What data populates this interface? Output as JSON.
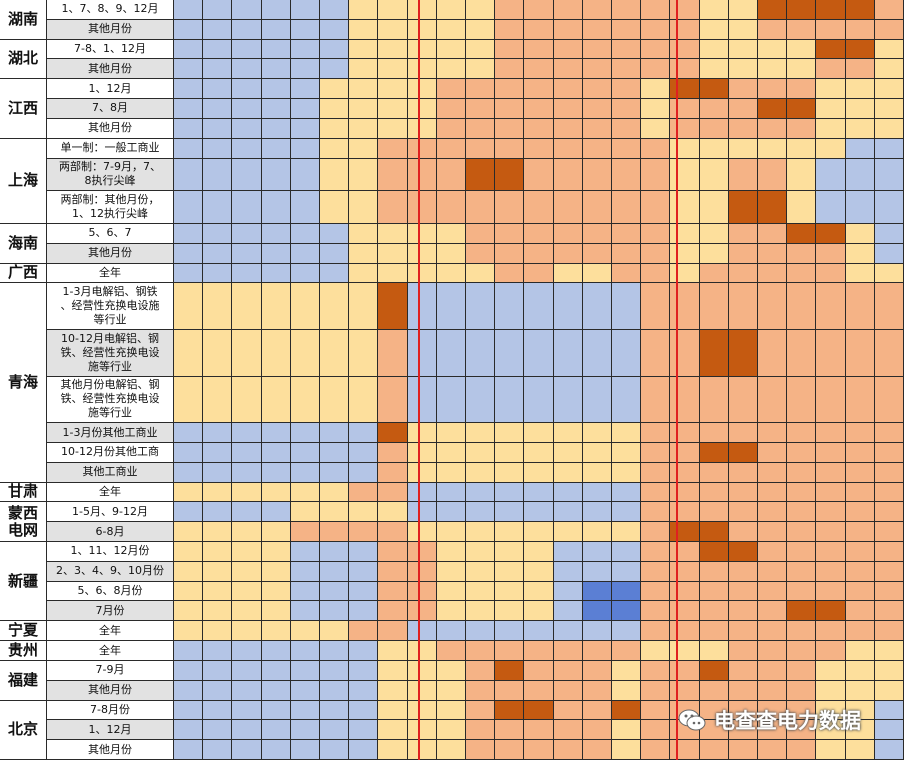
{
  "colors": {
    "B": "#b4c5e6",
    "D": "#5b7fd4",
    "Y": "#fddf9c",
    "O": "#f5b386",
    "R": "#c55a11",
    "label_gray": "#e2e2e2",
    "label_white": "#ffffff",
    "divider": "#e02020"
  },
  "provinces": [
    {
      "name": "湖南",
      "rows": [
        {
          "label": "1、7、8、9、12月",
          "pattern": [
            [
              "B",
              6
            ],
            [
              "Y",
              5
            ],
            [
              "O",
              7
            ],
            [
              "Y",
              2
            ],
            [
              "R",
              4
            ],
            [
              "O",
              1
            ],
            [
              "B",
              1
            ]
          ]
        },
        {
          "label": "其他月份",
          "pattern": [
            [
              "B",
              6
            ],
            [
              "Y",
              5
            ],
            [
              "O",
              7
            ],
            [
              "Y",
              2
            ],
            [
              "O",
              5
            ],
            [
              "B",
              1
            ]
          ]
        }
      ]
    },
    {
      "name": "湖北",
      "rows": [
        {
          "label": "7-8、1、12月",
          "pattern": [
            [
              "B",
              6
            ],
            [
              "Y",
              5
            ],
            [
              "O",
              7
            ],
            [
              "Y",
              4
            ],
            [
              "R",
              2
            ],
            [
              "Y",
              1
            ],
            [
              "B",
              1
            ]
          ]
        },
        {
          "label": "其他月份",
          "pattern": [
            [
              "B",
              6
            ],
            [
              "Y",
              5
            ],
            [
              "O",
              7
            ],
            [
              "Y",
              4
            ],
            [
              "O",
              2
            ],
            [
              "Y",
              1
            ],
            [
              "B",
              1
            ]
          ]
        }
      ]
    },
    {
      "name": "江西",
      "rows": [
        {
          "label": "1、12月",
          "pattern": [
            [
              "B",
              5
            ],
            [
              "Y",
              4
            ],
            [
              "O",
              7
            ],
            [
              "Y",
              1
            ],
            [
              "R",
              2
            ],
            [
              "O",
              3
            ],
            [
              "Y",
              4
            ]
          ]
        },
        {
          "label": "7、8月",
          "pattern": [
            [
              "B",
              5
            ],
            [
              "Y",
              4
            ],
            [
              "O",
              7
            ],
            [
              "Y",
              1
            ],
            [
              "O",
              3
            ],
            [
              "R",
              2
            ],
            [
              "Y",
              4
            ]
          ]
        },
        {
          "label": "其他月份",
          "pattern": [
            [
              "B",
              5
            ],
            [
              "Y",
              4
            ],
            [
              "O",
              7
            ],
            [
              "Y",
              1
            ],
            [
              "O",
              5
            ],
            [
              "Y",
              4
            ]
          ]
        }
      ]
    },
    {
      "name": "上海",
      "rows": [
        {
          "label": "单一制：一般工商业",
          "pattern": [
            [
              "B",
              5
            ],
            [
              "Y",
              2
            ],
            [
              "O",
              10
            ],
            [
              "Y",
              6
            ],
            [
              "B",
              3
            ]
          ]
        },
        {
          "label": "两部制：7-9月，7、\n8执行尖峰",
          "pattern": [
            [
              "B",
              5
            ],
            [
              "Y",
              2
            ],
            [
              "O",
              3
            ],
            [
              "R",
              2
            ],
            [
              "O",
              5
            ],
            [
              "Y",
              2
            ],
            [
              "O",
              2
            ],
            [
              "Y",
              1
            ],
            [
              "B",
              3
            ]
          ]
        },
        {
          "label": "两部制：其他月份，\n1、12执行尖峰",
          "pattern": [
            [
              "B",
              5
            ],
            [
              "Y",
              2
            ],
            [
              "O",
              10
            ],
            [
              "Y",
              2
            ],
            [
              "R",
              2
            ],
            [
              "Y",
              1
            ],
            [
              "B",
              3
            ]
          ]
        }
      ]
    },
    {
      "name": "海南",
      "rows": [
        {
          "label": "5、6、7",
          "pattern": [
            [
              "B",
              6
            ],
            [
              "Y",
              4
            ],
            [
              "O",
              7
            ],
            [
              "Y",
              2
            ],
            [
              "O",
              2
            ],
            [
              "R",
              2
            ],
            [
              "Y",
              1
            ],
            [
              "B",
              1
            ]
          ]
        },
        {
          "label": "其他月份",
          "pattern": [
            [
              "B",
              6
            ],
            [
              "Y",
              4
            ],
            [
              "O",
              7
            ],
            [
              "Y",
              2
            ],
            [
              "O",
              4
            ],
            [
              "Y",
              1
            ],
            [
              "B",
              1
            ]
          ]
        }
      ]
    },
    {
      "name": "广西",
      "rows": [
        {
          "label": "全年",
          "pattern": [
            [
              "B",
              6
            ],
            [
              "Y",
              5
            ],
            [
              "O",
              2
            ],
            [
              "Y",
              2
            ],
            [
              "O",
              2
            ],
            [
              "Y",
              1
            ],
            [
              "O",
              5
            ],
            [
              "Y",
              2
            ],
            [
              "B",
              1
            ]
          ]
        }
      ]
    },
    {
      "name": "青海",
      "rows": [
        {
          "label": "1-3月电解铝、钢铁\n、经营性充换电设施\n等行业",
          "pattern": [
            [
              "Y",
              7
            ],
            [
              "R",
              1
            ],
            [
              "B",
              8
            ],
            [
              "O",
              9
            ]
          ]
        },
        {
          "label": "10-12月电解铝、钢\n铁、经营性充换电设\n施等行业",
          "pattern": [
            [
              "Y",
              7
            ],
            [
              "O",
              1
            ],
            [
              "B",
              8
            ],
            [
              "O",
              2
            ],
            [
              "R",
              2
            ],
            [
              "O",
              5
            ]
          ]
        },
        {
          "label": "其他月份电解铝、钢\n铁、经营性充换电设\n施等行业",
          "pattern": [
            [
              "Y",
              7
            ],
            [
              "O",
              1
            ],
            [
              "B",
              8
            ],
            [
              "O",
              9
            ]
          ]
        },
        {
          "label": "1-3月份其他工商业",
          "pattern": [
            [
              "B",
              7
            ],
            [
              "R",
              1
            ],
            [
              "Y",
              8
            ],
            [
              "O",
              9
            ]
          ]
        },
        {
          "label": "10-12月份其他工商",
          "pattern": [
            [
              "B",
              7
            ],
            [
              "O",
              1
            ],
            [
              "Y",
              8
            ],
            [
              "O",
              2
            ],
            [
              "R",
              2
            ],
            [
              "O",
              5
            ]
          ]
        },
        {
          "label": "其他工商业",
          "pattern": [
            [
              "B",
              7
            ],
            [
              "O",
              1
            ],
            [
              "Y",
              8
            ],
            [
              "O",
              9
            ]
          ]
        }
      ]
    },
    {
      "name": "甘肃",
      "rows": [
        {
          "label": "全年",
          "pattern": [
            [
              "Y",
              6
            ],
            [
              "O",
              2
            ],
            [
              "B",
              8
            ],
            [
              "O",
              9
            ]
          ]
        }
      ]
    },
    {
      "name": "蒙西\n电网",
      "rows": [
        {
          "label": "1-5月、9-12月",
          "pattern": [
            [
              "B",
              4
            ],
            [
              "Y",
              4
            ],
            [
              "B",
              8
            ],
            [
              "O",
              9
            ]
          ]
        },
        {
          "label": "6-8月",
          "pattern": [
            [
              "Y",
              4
            ],
            [
              "O",
              4
            ],
            [
              "Y",
              8
            ],
            [
              "O",
              1
            ],
            [
              "R",
              2
            ],
            [
              "O",
              6
            ]
          ]
        }
      ]
    },
    {
      "name": "新疆",
      "rows": [
        {
          "label": "1、11、12月份",
          "pattern": [
            [
              "Y",
              4
            ],
            [
              "B",
              3
            ],
            [
              "O",
              2
            ],
            [
              "Y",
              4
            ],
            [
              "B",
              3
            ],
            [
              "O",
              2
            ],
            [
              "R",
              2
            ],
            [
              "O",
              5
            ]
          ]
        },
        {
          "label": "2、3、4、9、10月份",
          "pattern": [
            [
              "Y",
              4
            ],
            [
              "B",
              3
            ],
            [
              "O",
              2
            ],
            [
              "Y",
              4
            ],
            [
              "B",
              3
            ],
            [
              "O",
              9
            ]
          ]
        },
        {
          "label": "5、6、8月份",
          "pattern": [
            [
              "Y",
              4
            ],
            [
              "B",
              3
            ],
            [
              "O",
              2
            ],
            [
              "Y",
              4
            ],
            [
              "B",
              1
            ],
            [
              "D",
              2
            ],
            [
              "O",
              9
            ]
          ]
        },
        {
          "label": "7月份",
          "pattern": [
            [
              "Y",
              4
            ],
            [
              "B",
              3
            ],
            [
              "O",
              2
            ],
            [
              "Y",
              4
            ],
            [
              "B",
              1
            ],
            [
              "D",
              2
            ],
            [
              "O",
              5
            ],
            [
              "R",
              2
            ],
            [
              "O",
              2
            ]
          ]
        }
      ]
    },
    {
      "name": "宁夏",
      "rows": [
        {
          "label": "全年",
          "pattern": [
            [
              "Y",
              6
            ],
            [
              "O",
              2
            ],
            [
              "B",
              8
            ],
            [
              "O",
              9
            ]
          ]
        }
      ]
    },
    {
      "name": "贵州",
      "rows": [
        {
          "label": "全年",
          "pattern": [
            [
              "B",
              7
            ],
            [
              "Y",
              2
            ],
            [
              "O",
              7
            ],
            [
              "Y",
              3
            ],
            [
              "O",
              4
            ],
            [
              "Y",
              2
            ]
          ]
        }
      ]
    },
    {
      "name": "福建",
      "rows": [
        {
          "label": "7-9月",
          "pattern": [
            [
              "B",
              7
            ],
            [
              "Y",
              3
            ],
            [
              "O",
              1
            ],
            [
              "R",
              1
            ],
            [
              "O",
              3
            ],
            [
              "Y",
              1
            ],
            [
              "O",
              2
            ],
            [
              "R",
              1
            ],
            [
              "O",
              3
            ],
            [
              "Y",
              3
            ]
          ]
        },
        {
          "label": "其他月份",
          "pattern": [
            [
              "B",
              7
            ],
            [
              "Y",
              3
            ],
            [
              "O",
              5
            ],
            [
              "Y",
              1
            ],
            [
              "O",
              6
            ],
            [
              "Y",
              3
            ]
          ]
        }
      ]
    },
    {
      "name": "北京",
      "rows": [
        {
          "label": "7-8月份",
          "pattern": [
            [
              "B",
              7
            ],
            [
              "Y",
              3
            ],
            [
              "O",
              1
            ],
            [
              "R",
              2
            ],
            [
              "O",
              2
            ],
            [
              "R",
              1
            ],
            [
              "O",
              6
            ],
            [
              "Y",
              2
            ],
            [
              "B",
              1
            ]
          ]
        },
        {
          "label": "1、12月",
          "pattern": [
            [
              "B",
              7
            ],
            [
              "Y",
              3
            ],
            [
              "O",
              5
            ],
            [
              "Y",
              1
            ],
            [
              "O",
              6
            ],
            [
              "Y",
              2
            ],
            [
              "B",
              1
            ]
          ]
        },
        {
          "label": "其他月份",
          "pattern": [
            [
              "B",
              7
            ],
            [
              "Y",
              3
            ],
            [
              "O",
              5
            ],
            [
              "Y",
              1
            ],
            [
              "O",
              6
            ],
            [
              "Y",
              2
            ],
            [
              "B",
              1
            ]
          ]
        }
      ]
    }
  ],
  "watermark": {
    "text": "电查查电力数据",
    "icon": "wechat-icon"
  }
}
